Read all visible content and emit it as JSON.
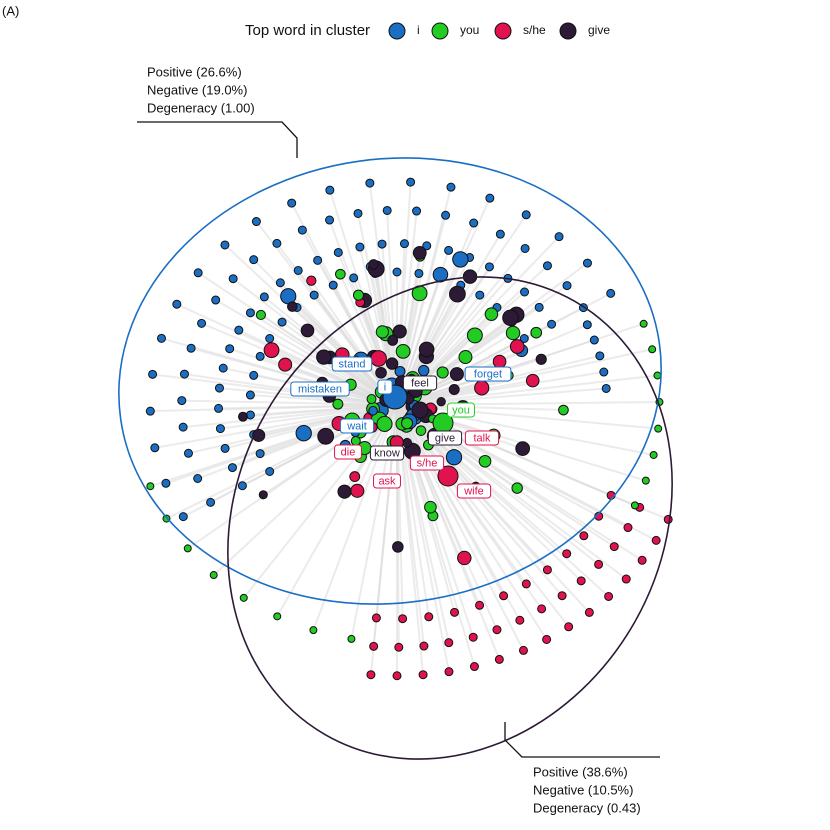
{
  "panel_label": "(A)",
  "legend": {
    "title": "Top word in cluster",
    "items": [
      {
        "label": "i",
        "color": "#1a6fc4"
      },
      {
        "label": "you",
        "color": "#22cc22"
      },
      {
        "label": "s/he",
        "color": "#e0134f"
      },
      {
        "label": "give",
        "color": "#2d1a36"
      }
    ]
  },
  "clusters": [
    {
      "lines": [
        "Positive (26.6%)",
        "Negative (19.0%)",
        "Degeneracy (1.00)"
      ],
      "color": "#1a6fc4"
    },
    {
      "lines": [
        "Positive (38.6%)",
        "Negative (10.5%)",
        "Degeneracy (0.43)"
      ],
      "color": "#2d1a36"
    }
  ],
  "node_labels": [
    {
      "text": "stand",
      "cluster": 0
    },
    {
      "text": "mistaken",
      "cluster": 0
    },
    {
      "text": "wait",
      "cluster": 0
    },
    {
      "text": "i",
      "cluster": 0
    },
    {
      "text": "feel",
      "cluster": 3
    },
    {
      "text": "forget",
      "cluster": 0
    },
    {
      "text": "you",
      "cluster": 1
    },
    {
      "text": "give",
      "cluster": 3
    },
    {
      "text": "talk",
      "cluster": 2
    },
    {
      "text": "know",
      "cluster": 3
    },
    {
      "text": "die",
      "cluster": 2
    },
    {
      "text": "s/he",
      "cluster": 2
    },
    {
      "text": "ask",
      "cluster": 2
    },
    {
      "text": "wife",
      "cluster": 2
    }
  ]
}
